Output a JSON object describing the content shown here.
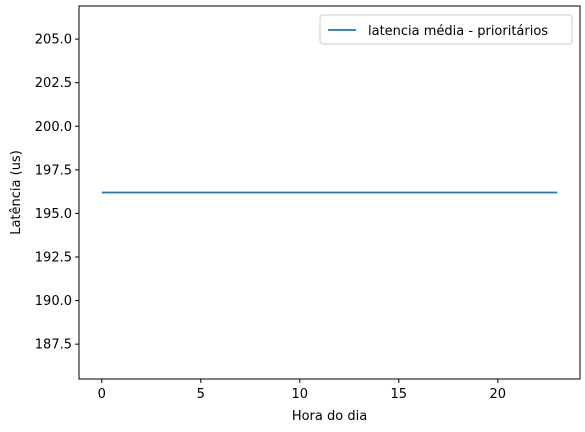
{
  "chart_data": {
    "type": "line",
    "title": "",
    "xlabel": "Hora do dia",
    "ylabel": "Latência (us)",
    "xlim": [
      -1.15,
      24.15
    ],
    "ylim": [
      185.5,
      206.9
    ],
    "xticks": [
      0,
      5,
      10,
      15,
      20
    ],
    "yticks": [
      187.5,
      190.0,
      192.5,
      195.0,
      197.5,
      200.0,
      202.5,
      205.0
    ],
    "ytick_labels": [
      "187.5",
      "190.0",
      "192.5",
      "195.0",
      "197.5",
      "200.0",
      "202.5",
      "205.0"
    ],
    "grid": false,
    "legend_position": "top-right",
    "series": [
      {
        "name": "latencia média - prioritários",
        "color": "#1f77b4",
        "x": [
          0,
          1,
          2,
          3,
          4,
          5,
          6,
          7,
          8,
          9,
          10,
          11,
          12,
          13,
          14,
          15,
          16,
          17,
          18,
          19,
          20,
          21,
          22,
          23
        ],
        "y": [
          196.2,
          196.2,
          196.2,
          196.2,
          196.2,
          196.2,
          196.2,
          196.2,
          196.2,
          196.2,
          196.2,
          196.2,
          196.2,
          196.2,
          196.2,
          196.2,
          196.2,
          196.2,
          196.2,
          196.2,
          196.2,
          196.2,
          196.2,
          196.2
        ]
      }
    ]
  }
}
